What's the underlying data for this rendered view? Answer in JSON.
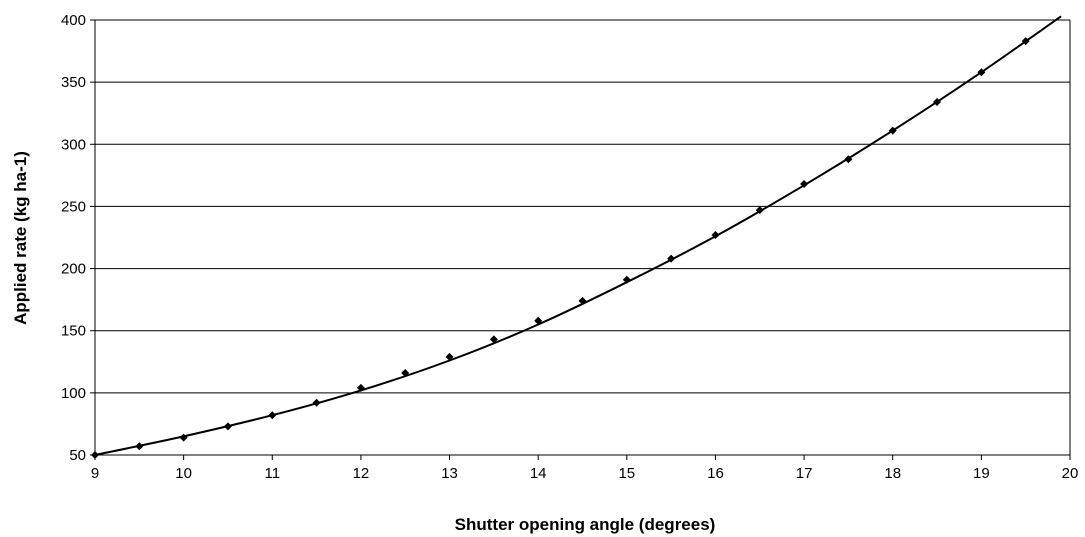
{
  "chart_data": {
    "type": "line",
    "title": "",
    "xlabel": "Shutter opening angle (degrees)",
    "ylabel": "Applied rate (kg ha-1)",
    "xlim": [
      9,
      20
    ],
    "ylim": [
      50,
      400
    ],
    "x_ticks": [
      "9",
      "10",
      "11",
      "12",
      "13",
      "14",
      "15",
      "16",
      "17",
      "18",
      "19",
      "20"
    ],
    "y_ticks": [
      "50",
      "100",
      "150",
      "200",
      "250",
      "300",
      "350",
      "400"
    ],
    "grid": "horizontal",
    "legend": "none",
    "series": [
      {
        "marker": "diamond",
        "color": "#000000",
        "x": [
          9,
          9.5,
          10,
          10.5,
          11,
          11.5,
          12,
          12.5,
          13,
          13.5,
          14,
          14.5,
          15,
          15.5,
          16,
          16.5,
          17,
          17.5,
          18,
          18.5,
          19,
          19.5
        ],
        "y": [
          50,
          57,
          64,
          73,
          82,
          92,
          104,
          116,
          129,
          143,
          158,
          174,
          191,
          208,
          227,
          247,
          268,
          288,
          311,
          334,
          358,
          383
        ]
      }
    ],
    "trendline": {
      "color": "#000000",
      "x_range": [
        9,
        19.9
      ],
      "points": [
        [
          9,
          50
        ],
        [
          10,
          65
        ],
        [
          11,
          82
        ],
        [
          12,
          102
        ],
        [
          13,
          126
        ],
        [
          14,
          155
        ],
        [
          15,
          189
        ],
        [
          16,
          226
        ],
        [
          17,
          267
        ],
        [
          18,
          311
        ],
        [
          19,
          358
        ],
        [
          19.9,
          403
        ]
      ]
    }
  }
}
